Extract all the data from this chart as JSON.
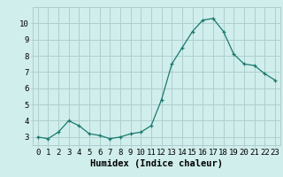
{
  "x": [
    0,
    1,
    2,
    3,
    4,
    5,
    6,
    7,
    8,
    9,
    10,
    11,
    12,
    13,
    14,
    15,
    16,
    17,
    18,
    19,
    20,
    21,
    22,
    23
  ],
  "y": [
    3.0,
    2.9,
    3.3,
    4.0,
    3.7,
    3.2,
    3.1,
    2.9,
    3.0,
    3.2,
    3.3,
    3.7,
    5.3,
    7.5,
    8.5,
    9.5,
    10.2,
    10.3,
    9.5,
    8.1,
    7.5,
    7.4,
    6.9,
    6.5
  ],
  "xlabel": "Humidex (Indice chaleur)",
  "ylim": [
    2.5,
    11.0
  ],
  "xlim": [
    -0.5,
    23.5
  ],
  "yticks": [
    3,
    4,
    5,
    6,
    7,
    8,
    9,
    10
  ],
  "xticks": [
    0,
    1,
    2,
    3,
    4,
    5,
    6,
    7,
    8,
    9,
    10,
    11,
    12,
    13,
    14,
    15,
    16,
    17,
    18,
    19,
    20,
    21,
    22,
    23
  ],
  "line_color": "#1a7a6e",
  "marker": "+",
  "bg_color": "#d0eeec",
  "grid_color": "#b0cece",
  "tick_label_fontsize": 6.5,
  "xlabel_fontsize": 7.5
}
